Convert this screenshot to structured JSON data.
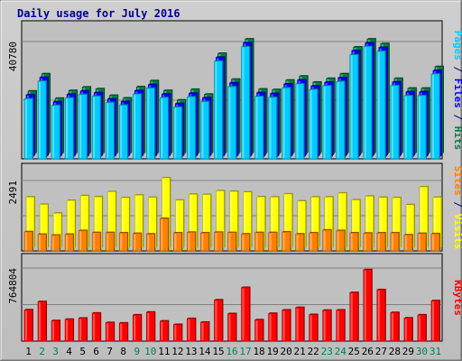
{
  "chart_data": {
    "type": "bar",
    "title": "Daily usage for July 2016",
    "categories": [
      "1",
      "2",
      "3",
      "4",
      "5",
      "6",
      "7",
      "8",
      "9",
      "10",
      "11",
      "12",
      "13",
      "14",
      "15",
      "16",
      "17",
      "18",
      "19",
      "20",
      "21",
      "22",
      "23",
      "24",
      "25",
      "26",
      "27",
      "28",
      "29",
      "30",
      "31"
    ],
    "weekend_days": [
      "2",
      "3",
      "9",
      "10",
      "16",
      "17",
      "23",
      "24",
      "30",
      "31"
    ],
    "panels": [
      {
        "id": "top",
        "max_label": "40780",
        "ylim": [
          0,
          40780
        ],
        "axis_label_parts": [
          {
            "text": "Pages",
            "color": "#00ccff"
          },
          {
            "text": " / ",
            "color": "#000080"
          },
          {
            "text": "Files",
            "color": "#0000ff"
          },
          {
            "text": " / ",
            "color": "#000080"
          },
          {
            "text": "Hits",
            "color": "#008040"
          }
        ],
        "series": [
          {
            "name": "Hits",
            "color": "#008040",
            "values": [
              21700,
              27700,
              19200,
              21900,
              23100,
              22500,
              20200,
              19300,
              23200,
              25300,
              21900,
              18600,
              22300,
              20600,
              34800,
              25800,
              39800,
              22400,
              22200,
              25500,
              26900,
              24800,
              26100,
              27700,
              37000,
              39800,
              38200,
              26100,
              22700,
              22700,
              30200
            ]
          },
          {
            "name": "Files",
            "color": "#0000ff",
            "values": [
              21400,
              27400,
              18900,
              21500,
              22700,
              22100,
              19900,
              19000,
              22800,
              24900,
              21600,
              18300,
              21900,
              20300,
              34400,
              25500,
              39400,
              22100,
              21800,
              25100,
              26500,
              24400,
              25700,
              27300,
              36700,
              39400,
              37800,
              25800,
              22400,
              22400,
              29800
            ]
          },
          {
            "name": "Pages",
            "color": "#00ccff",
            "values": [
              20900,
              27000,
              18600,
              21200,
              22400,
              21800,
              19600,
              18700,
              22500,
              24600,
              21300,
              18000,
              21600,
              19900,
              34000,
              25100,
              39000,
              21700,
              21400,
              24700,
              26100,
              24100,
              25400,
              26900,
              36200,
              39100,
              37400,
              25500,
              22000,
              22000,
              29500
            ]
          }
        ]
      },
      {
        "id": "middle",
        "max_label": "2491",
        "ylim": [
          0,
          2491
        ],
        "axis_label_parts": [
          {
            "text": "Sites",
            "color": "#ff8000"
          },
          {
            "text": " / ",
            "color": "#000080"
          },
          {
            "text": "Visits",
            "color": "#ffff00"
          }
        ],
        "series": [
          {
            "name": "Visits",
            "color": "#ffff00",
            "values": [
              1810,
              1550,
              1240,
              1690,
              1860,
              1820,
              2000,
              1790,
              1880,
              1800,
              2491,
              1700,
              1910,
              1900,
              2030,
              2010,
              1990,
              1820,
              1810,
              1920,
              1670,
              1810,
              1810,
              1950,
              1710,
              1840,
              1800,
              1790,
              1540,
              2170,
              1800
            ]
          },
          {
            "name": "Sites",
            "color": "#ff8000",
            "values": [
              680,
              590,
              560,
              590,
              720,
              650,
              650,
              640,
              620,
              600,
              1150,
              640,
              660,
              640,
              660,
              650,
              600,
              650,
              650,
              670,
              600,
              640,
              740,
              720,
              640,
              630,
              640,
              640,
              570,
              620,
              610
            ]
          }
        ]
      },
      {
        "id": "bottom",
        "max_label": "764804",
        "ylim": [
          0,
          764804
        ],
        "axis_label_parts": [
          {
            "text": "KBytes",
            "color": "#ff0000"
          }
        ],
        "series": [
          {
            "name": "KBytes",
            "color": "#ff0000",
            "values": [
              328000,
              414000,
              215000,
              229000,
              241000,
              294000,
              195000,
              190000,
              275000,
              304000,
              211000,
              175000,
              237000,
              199000,
              432000,
              288000,
              562000,
              224000,
              291000,
              326000,
              353000,
              279000,
              324000,
              326000,
              509000,
              748000,
              539000,
              300000,
              243000,
              275000,
              424000
            ]
          }
        ]
      }
    ]
  }
}
